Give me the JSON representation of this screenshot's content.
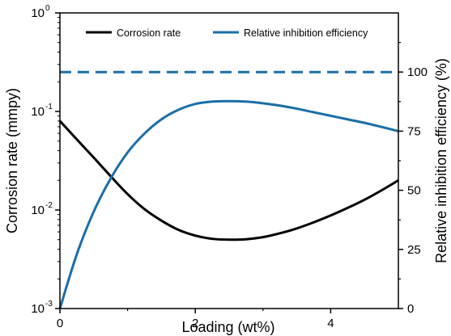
{
  "chart_data": {
    "type": "line",
    "xlabel": "Loading (wt%)",
    "ylabel_left": "Corrosion rate (mmpy)",
    "ylabel_right": "Relative inhibition efficiency (%)",
    "xlim": [
      0,
      5
    ],
    "ylim_left": [
      0.001,
      1
    ],
    "ylim_left_scale": "log",
    "ylim_right": [
      0,
      125
    ],
    "x_ticks": [
      0,
      2,
      4
    ],
    "y_left_ticks": [
      {
        "base": "10",
        "exp": "-3",
        "value": 0.001
      },
      {
        "base": "10",
        "exp": "-2",
        "value": 0.01
      },
      {
        "base": "10",
        "exp": "-1",
        "value": 0.1
      },
      {
        "base": "10",
        "exp": "0",
        "value": 1
      }
    ],
    "y_right_ticks": [
      "0",
      "25",
      "50",
      "75",
      "100"
    ],
    "legend_placement": "top",
    "series": [
      {
        "name": "Corrosion rate",
        "axis": "left",
        "color": "#000000",
        "style": "solid",
        "x": [
          0,
          0.25,
          0.5,
          0.75,
          1.0,
          1.25,
          1.5,
          1.75,
          2.0,
          2.25,
          2.5,
          2.75,
          3.0,
          3.25,
          3.5,
          3.75,
          4.0,
          4.25,
          4.5,
          4.75,
          5.0
        ],
        "y": [
          0.08,
          0.052,
          0.034,
          0.022,
          0.0145,
          0.0102,
          0.0078,
          0.0063,
          0.0055,
          0.0051,
          0.005,
          0.00505,
          0.0053,
          0.0058,
          0.0065,
          0.0075,
          0.0088,
          0.0105,
          0.0127,
          0.0158,
          0.02
        ]
      },
      {
        "name": "Relative inhibition efficiency",
        "axis": "right",
        "color": "#1a6ea8",
        "style": "solid",
        "x": [
          0,
          0.25,
          0.5,
          0.75,
          1.0,
          1.25,
          1.5,
          1.75,
          2.0,
          2.25,
          2.5,
          2.75,
          3.0,
          3.25,
          3.5,
          3.75,
          4.0,
          4.25,
          4.5,
          4.75,
          5.0
        ],
        "y": [
          0,
          23,
          41,
          55,
          66,
          74,
          80,
          84,
          86.5,
          87.5,
          87.7,
          87.5,
          86.8,
          85.8,
          84.5,
          83,
          81.5,
          80,
          78.5,
          76.8,
          75
        ]
      },
      {
        "axis": "right",
        "color": "#1a6ea8",
        "style": "dashed",
        "x": [
          0,
          5
        ],
        "y": [
          100,
          100
        ]
      }
    ]
  }
}
